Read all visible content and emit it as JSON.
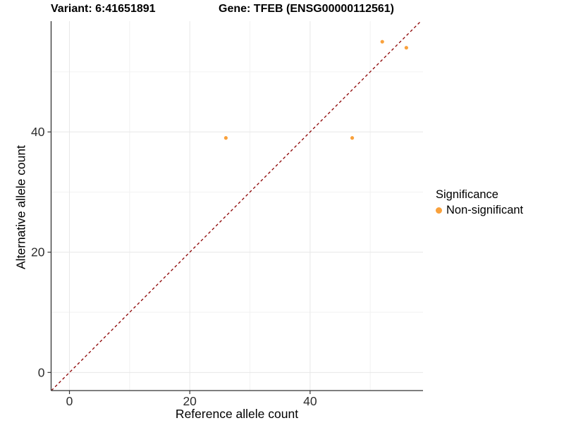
{
  "titles": {
    "variant": "Variant: 6:41651891",
    "gene": "Gene: TFEB (ENSG00000112561)"
  },
  "chart_data": {
    "type": "scatter",
    "title_left": "Variant: 6:41651891",
    "title_right": "Gene: TFEB (ENSG00000112561)",
    "xlabel": "Reference allele count",
    "ylabel": "Alternative allele count",
    "xticks": [
      0,
      20,
      40
    ],
    "yticks": [
      0,
      20,
      40
    ],
    "x_minor": [
      10,
      30,
      50
    ],
    "y_minor": [
      10,
      30,
      50
    ],
    "xlim": [
      -3.05,
      58.77
    ],
    "ylim": [
      -3.01,
      58.42
    ],
    "grid": true,
    "series": [
      {
        "name": "Non-significant",
        "color": "#F9A13C",
        "points": [
          {
            "x": 26,
            "y": 39
          },
          {
            "x": 47,
            "y": 39
          },
          {
            "x": 52,
            "y": 55
          },
          {
            "x": 56,
            "y": 54
          }
        ]
      }
    ],
    "ref_line": {
      "equation": "y = x",
      "style": "dashed",
      "color": "#8B0000"
    },
    "colors": {
      "grid_major": "#E7E7E7",
      "grid_minor": "#F2F2F2",
      "axis": "#333333",
      "tick_text": "#2E2E2E"
    },
    "legend": {
      "title": "Significance",
      "position": "right",
      "items": [
        {
          "label": "Non-significant",
          "color": "#F9A13C"
        }
      ]
    }
  }
}
